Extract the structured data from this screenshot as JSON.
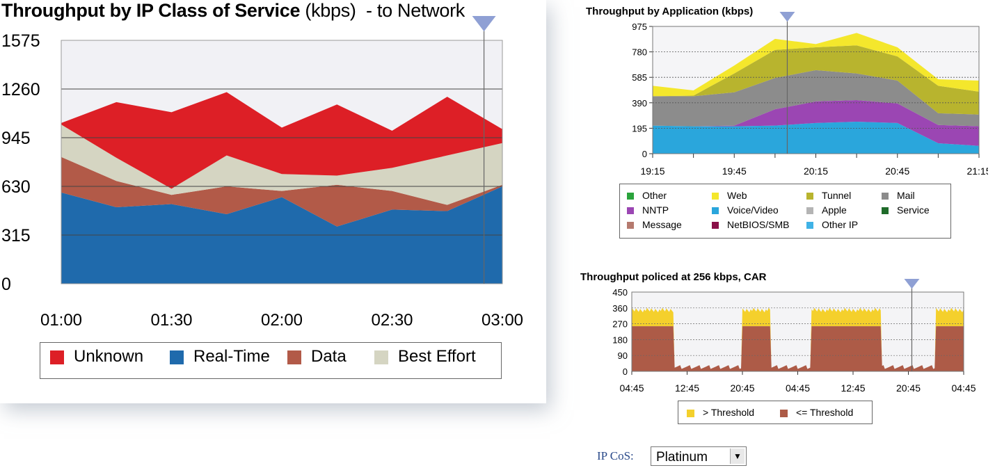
{
  "left_panel": {
    "title_bold": "Throughput by IP Class of Service",
    "title_units": "(kbps)",
    "title_suffix": "- to Network"
  },
  "chart_data": [
    {
      "id": "cos",
      "type": "area",
      "stacked": true,
      "title": "Throughput by IP Class of Service (kbps) - to Network",
      "x_labels": [
        "01:00",
        "01:30",
        "02:00",
        "02:30",
        "03:00"
      ],
      "y_ticks": [
        0,
        315,
        630,
        945,
        1260,
        1575
      ],
      "ylim": [
        0,
        1575
      ],
      "x_points": 13,
      "series": [
        {
          "name": "Real-Time",
          "color": "#1f6aac",
          "values": [
            590,
            495,
            515,
            450,
            560,
            370,
            480,
            470,
            630
          ]
        },
        {
          "name": "Data",
          "color": "#b25a48",
          "values": [
            230,
            170,
            60,
            180,
            40,
            270,
            120,
            40,
            10
          ]
        },
        {
          "name": "Best Effort",
          "color": "#d5d5c2",
          "values": [
            210,
            150,
            40,
            200,
            110,
            60,
            150,
            320,
            270
          ]
        },
        {
          "name": "Unknown",
          "color": "#dd1f26",
          "values": [
            10,
            360,
            495,
            410,
            300,
            460,
            240,
            380,
            90
          ]
        }
      ],
      "series_x": [
        0,
        1.5,
        3,
        4.5,
        6,
        7.5,
        9,
        10.5,
        12
      ],
      "marker_x": 11.5,
      "legend_order": [
        "Unknown",
        "Real-Time",
        "Data",
        "Best Effort"
      ]
    },
    {
      "id": "app",
      "type": "area",
      "stacked": true,
      "title": "Throughput by Application (kbps)",
      "x_labels": [
        "19:15",
        "19:45",
        "20:15",
        "20:45",
        "21:15"
      ],
      "y_ticks": [
        0,
        195,
        390,
        585,
        780,
        975
      ],
      "ylim": [
        0,
        975
      ],
      "series_x": [
        0,
        1,
        2,
        3,
        4,
        5,
        6,
        7,
        8
      ],
      "series": [
        {
          "name": "Voice/Video",
          "color": "#2aa6dc",
          "values": [
            215,
            210,
            210,
            215,
            235,
            245,
            235,
            80,
            60
          ]
        },
        {
          "name": "NNTP",
          "color": "#9b46b3",
          "values": [
            0,
            0,
            5,
            125,
            165,
            165,
            150,
            140,
            150
          ]
        },
        {
          "name": "Mail",
          "color": "#8c8c8c",
          "values": [
            225,
            230,
            255,
            240,
            240,
            205,
            175,
            90,
            90
          ]
        },
        {
          "name": "Tunnel",
          "color": "#b8b42e",
          "values": [
            0,
            5,
            145,
            215,
            175,
            215,
            185,
            210,
            175
          ]
        },
        {
          "name": "Web",
          "color": "#f4e72c",
          "values": [
            80,
            40,
            60,
            85,
            25,
            95,
            70,
            50,
            85
          ]
        }
      ],
      "marker_x": 3.3,
      "legend": [
        {
          "label": "Other",
          "color": "#2aa33c"
        },
        {
          "label": "Web",
          "color": "#f4e72c"
        },
        {
          "label": "Tunnel",
          "color": "#b8b42e"
        },
        {
          "label": "Mail",
          "color": "#8c8c8c"
        },
        {
          "label": "NNTP",
          "color": "#9b46b3"
        },
        {
          "label": "Voice/Video",
          "color": "#2aa6dc"
        },
        {
          "label": "Apple",
          "color": "#b4b4b4"
        },
        {
          "label": "Service",
          "color": "#1f6b2a"
        },
        {
          "label": "Message",
          "color": "#b57a6e"
        },
        {
          "label": "NetBIOS/SMB",
          "color": "#8a1048"
        },
        {
          "label": "Other IP",
          "color": "#3fb2e6"
        }
      ]
    },
    {
      "id": "car",
      "type": "area",
      "stacked": true,
      "title": "Throughput policed at 256 kbps, CAR",
      "x_labels": [
        "04:45",
        "12:45",
        "20:45",
        "04:45",
        "12:45",
        "20:45",
        "04:45"
      ],
      "y_ticks": [
        0,
        90,
        180,
        270,
        360,
        450
      ],
      "ylim": [
        0,
        450
      ],
      "x_domain": [
        0,
        48
      ],
      "threshold": 256,
      "pulses": [
        [
          0,
          6
        ],
        [
          16,
          20
        ],
        [
          26,
          36
        ],
        [
          44,
          48
        ]
      ],
      "burst_total": 360,
      "idle_total": 35,
      "marker_x": 40.5,
      "legend": [
        {
          "label": "> Threshold",
          "color": "#f4d02c"
        },
        {
          "label": "<= Threshold",
          "color": "#ad5b47"
        }
      ]
    }
  ],
  "controls": {
    "cos_label": "IP CoS:",
    "cos_value": "Platinum",
    "dropdown_icon": "triangle-down-icon"
  }
}
